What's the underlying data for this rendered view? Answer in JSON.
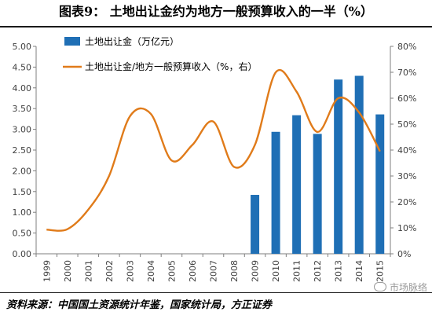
{
  "title": "图表9：  土地出让金约为地方一般预算收入的一半（%）",
  "source": "资料来源：中国国土资源统计年鉴，国家统计局，方正证券",
  "watermark": "市场脉络",
  "colors": {
    "bar": "#1f6fb5",
    "line": "#e07b1a",
    "axis": "#7f7f7f",
    "text": "#404040"
  },
  "chart_data": {
    "type": "bar",
    "categories": [
      "1999",
      "2000",
      "2001",
      "2002",
      "2003",
      "2004",
      "2005",
      "2006",
      "2007",
      "2008",
      "2009",
      "2010",
      "2011",
      "2012",
      "2013",
      "2014",
      "2015"
    ],
    "ylim": [
      0,
      5
    ],
    "y2lim": [
      0,
      80
    ],
    "yticks": [
      "0.00",
      "0.50",
      "1.00",
      "1.50",
      "2.00",
      "2.50",
      "3.00",
      "3.50",
      "4.00",
      "4.50",
      "5.00"
    ],
    "y2ticks": [
      "0%",
      "10%",
      "20%",
      "30%",
      "40%",
      "50%",
      "60%",
      "70%",
      "80%"
    ],
    "legend_position": "top-left",
    "grid": false,
    "series": [
      {
        "name": "土地出让金（万亿元）",
        "type": "bar",
        "axis": "left",
        "values": [
          null,
          null,
          null,
          null,
          null,
          null,
          null,
          null,
          null,
          null,
          1.42,
          2.94,
          3.34,
          2.89,
          4.2,
          4.29,
          3.36
        ]
      },
      {
        "name": "土地出让金/地方一般预算收入（%，右）",
        "type": "line",
        "axis": "right",
        "smooth": true,
        "values": [
          9.3,
          9.5,
          17.0,
          30.0,
          53.0,
          54.0,
          36.0,
          42.0,
          51.0,
          33.5,
          42.0,
          70.0,
          62.5,
          47.0,
          60.0,
          54.5,
          39.5
        ]
      }
    ]
  }
}
